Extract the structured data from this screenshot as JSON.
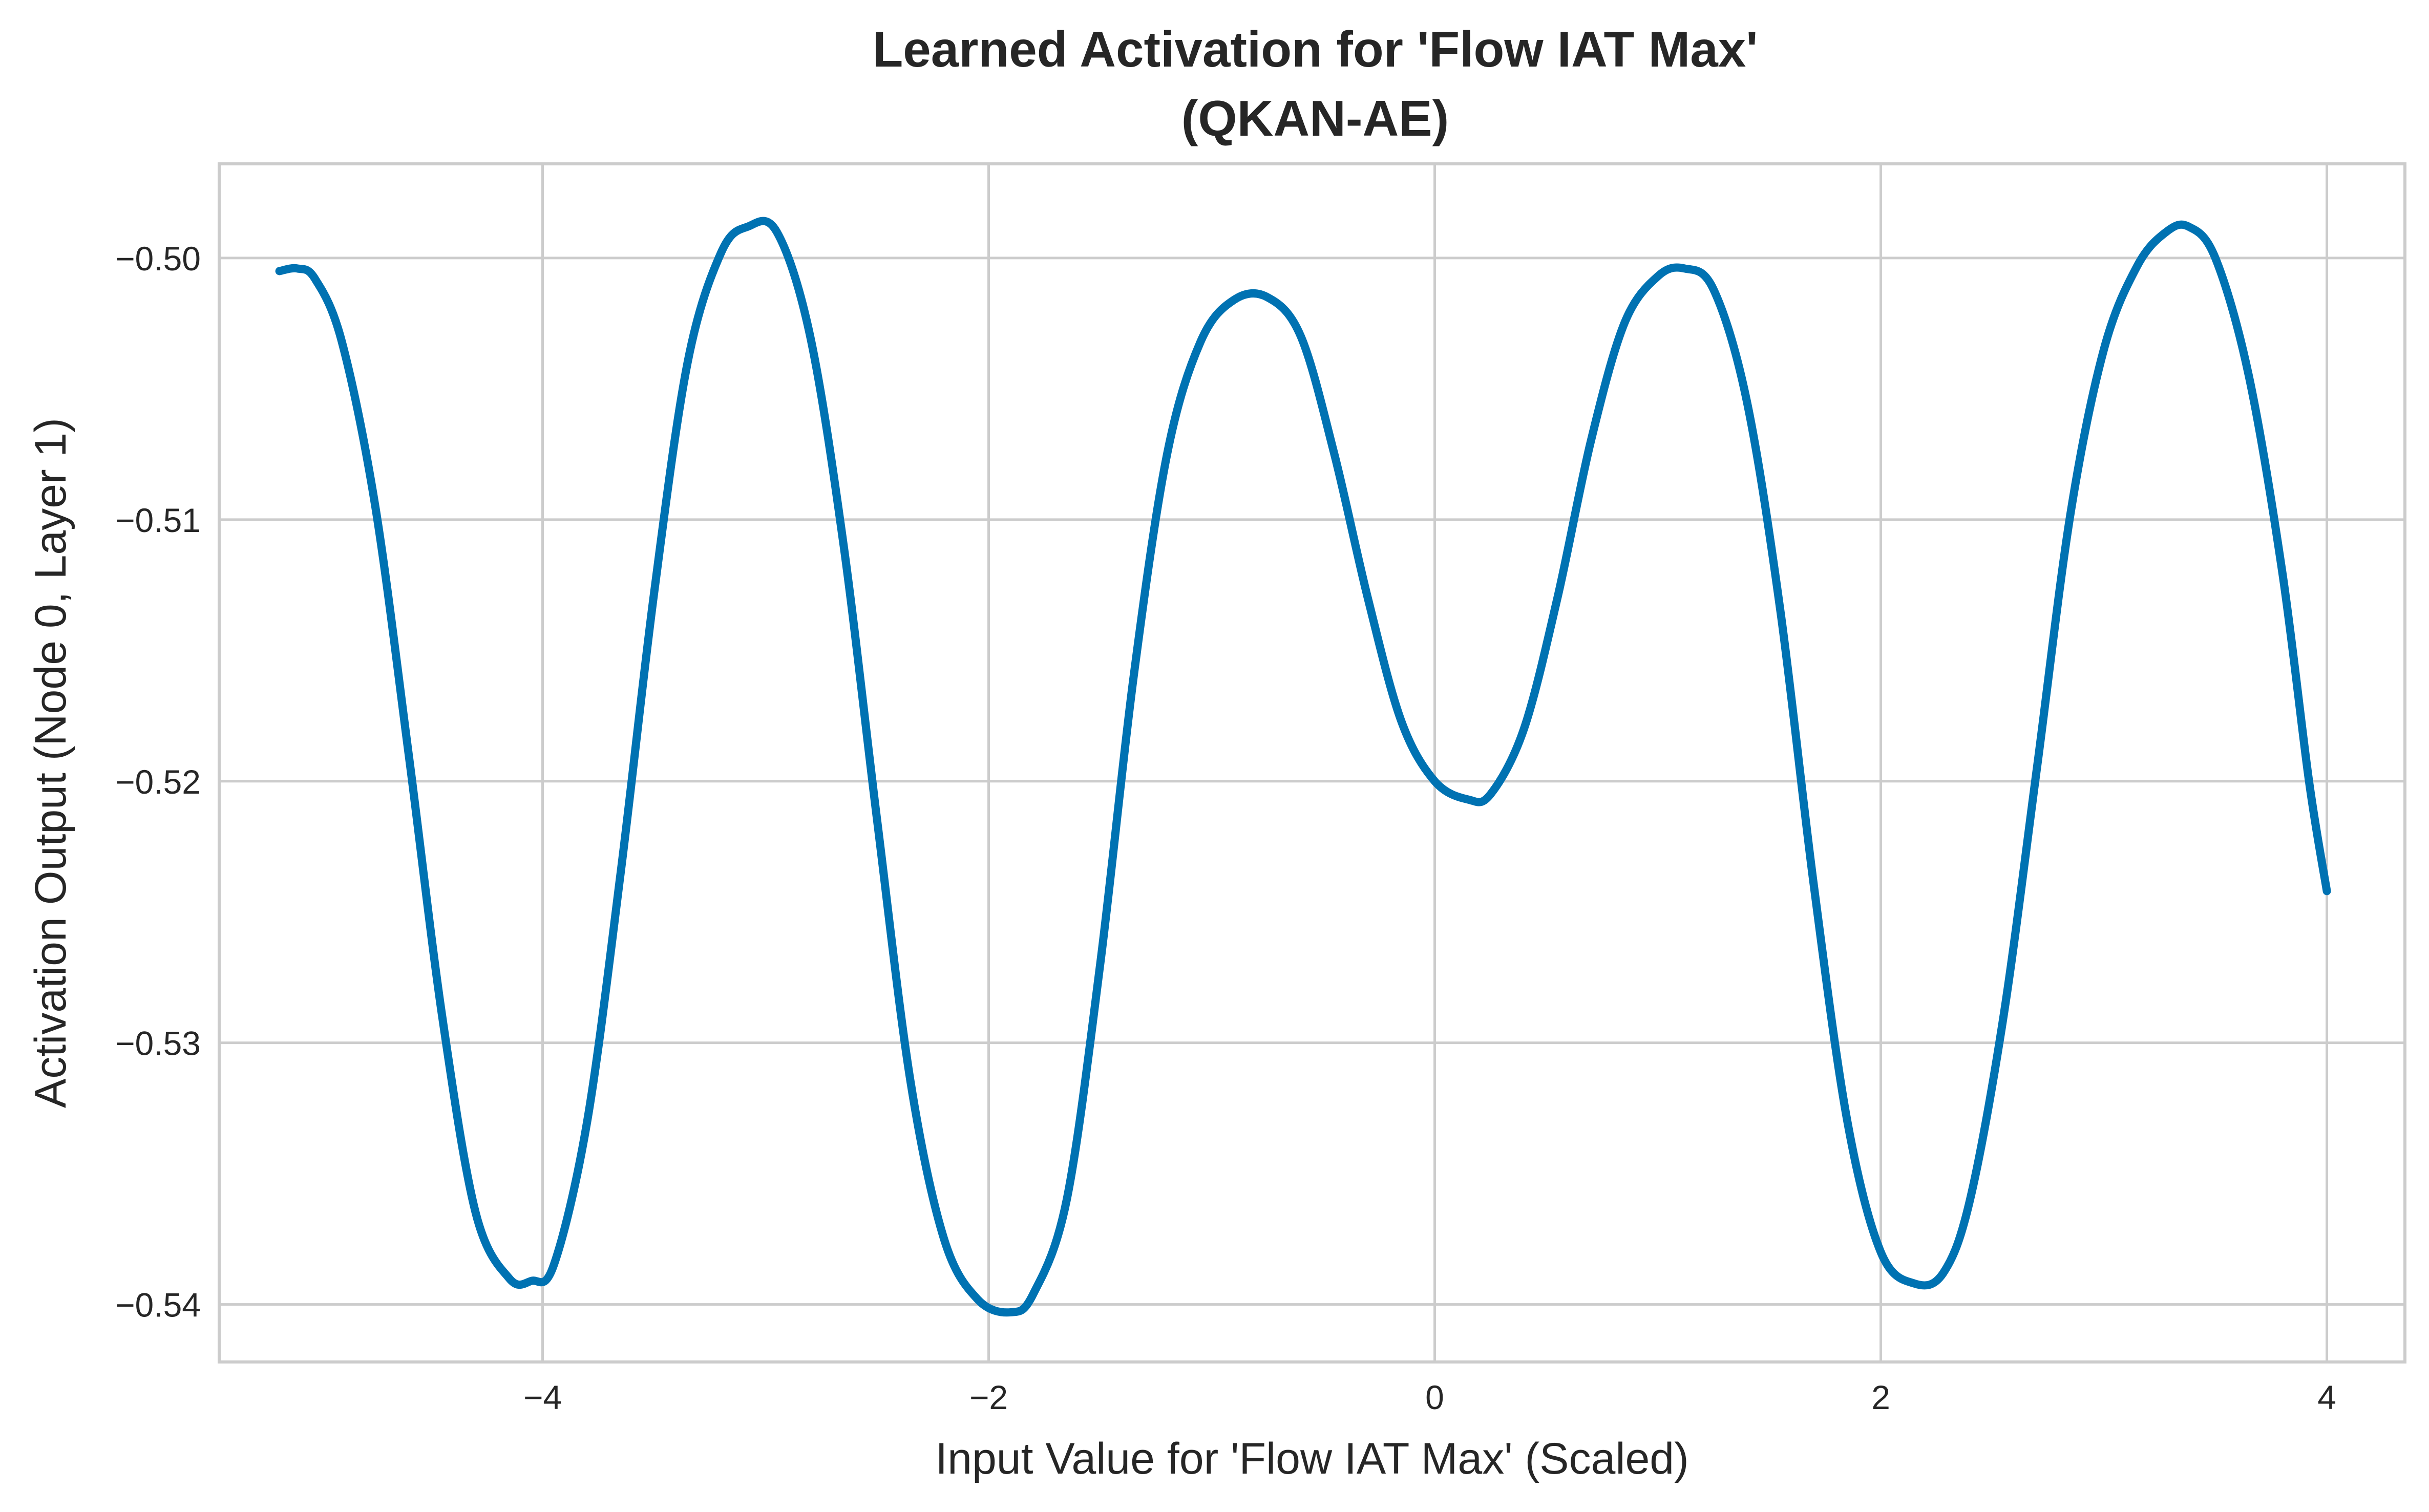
{
  "chart_data": {
    "type": "line",
    "title_line1": "Learned Activation for 'Flow IAT Max'",
    "title_line2": "(QKAN-AE)",
    "xlabel": "Input Value for 'Flow IAT Max' (Scaled)",
    "ylabel": "Activation Output (Node 0, Layer 1)",
    "xlim": [
      -5.45,
      4.35
    ],
    "ylim": [
      -0.5422,
      -0.4964
    ],
    "grid": true,
    "legend": "none",
    "line_color": "#0072B2",
    "x_ticks": [
      {
        "value": -4,
        "label": "−4"
      },
      {
        "value": -2,
        "label": "−2"
      },
      {
        "value": 0,
        "label": "0"
      },
      {
        "value": 2,
        "label": "2"
      },
      {
        "value": 4,
        "label": "4"
      }
    ],
    "y_ticks": [
      {
        "value": -0.5,
        "label": "−0.50"
      },
      {
        "value": -0.51,
        "label": "−0.51"
      },
      {
        "value": -0.52,
        "label": "−0.52"
      },
      {
        "value": -0.53,
        "label": "−0.53"
      },
      {
        "value": -0.54,
        "label": "−0.54"
      }
    ],
    "series": [
      {
        "color": "#0072B2",
        "points": [
          [
            -5.18,
            -0.5005
          ],
          [
            -5.1,
            -0.5004
          ],
          [
            -5.02,
            -0.5008
          ],
          [
            -4.9,
            -0.5032
          ],
          [
            -4.75,
            -0.5095
          ],
          [
            -4.6,
            -0.519
          ],
          [
            -4.45,
            -0.529
          ],
          [
            -4.3,
            -0.5365
          ],
          [
            -4.15,
            -0.539
          ],
          [
            -4.05,
            -0.5391
          ],
          [
            -3.95,
            -0.5385
          ],
          [
            -3.8,
            -0.533
          ],
          [
            -3.65,
            -0.5235
          ],
          [
            -3.5,
            -0.5128
          ],
          [
            -3.35,
            -0.504
          ],
          [
            -3.2,
            -0.4998
          ],
          [
            -3.08,
            -0.4988
          ],
          [
            -2.95,
            -0.499
          ],
          [
            -2.8,
            -0.503
          ],
          [
            -2.65,
            -0.511
          ],
          [
            -2.5,
            -0.5215
          ],
          [
            -2.35,
            -0.5315
          ],
          [
            -2.2,
            -0.5375
          ],
          [
            -2.05,
            -0.5398
          ],
          [
            -1.9,
            -0.5403
          ],
          [
            -1.8,
            -0.5396
          ],
          [
            -1.65,
            -0.536
          ],
          [
            -1.5,
            -0.527
          ],
          [
            -1.35,
            -0.516
          ],
          [
            -1.2,
            -0.5075
          ],
          [
            -1.05,
            -0.5032
          ],
          [
            -0.9,
            -0.5016
          ],
          [
            -0.75,
            -0.5015
          ],
          [
            -0.6,
            -0.503
          ],
          [
            -0.45,
            -0.5075
          ],
          [
            -0.3,
            -0.513
          ],
          [
            -0.15,
            -0.5177
          ],
          [
            0.0,
            -0.52
          ],
          [
            0.15,
            -0.5207
          ],
          [
            0.25,
            -0.5205
          ],
          [
            0.4,
            -0.518
          ],
          [
            0.55,
            -0.513
          ],
          [
            0.7,
            -0.507
          ],
          [
            0.85,
            -0.5025
          ],
          [
            1.0,
            -0.5007
          ],
          [
            1.12,
            -0.5004
          ],
          [
            1.25,
            -0.5012
          ],
          [
            1.4,
            -0.5055
          ],
          [
            1.55,
            -0.5135
          ],
          [
            1.7,
            -0.524
          ],
          [
            1.85,
            -0.533
          ],
          [
            2.0,
            -0.538
          ],
          [
            2.15,
            -0.5392
          ],
          [
            2.28,
            -0.5388
          ],
          [
            2.4,
            -0.536
          ],
          [
            2.55,
            -0.529
          ],
          [
            2.7,
            -0.5195
          ],
          [
            2.85,
            -0.5098
          ],
          [
            3.0,
            -0.5035
          ],
          [
            3.15,
            -0.5003
          ],
          [
            3.28,
            -0.499
          ],
          [
            3.38,
            -0.4988
          ],
          [
            3.5,
            -0.5
          ],
          [
            3.65,
            -0.5045
          ],
          [
            3.8,
            -0.512
          ],
          [
            3.92,
            -0.52
          ],
          [
            4.0,
            -0.5242
          ]
        ]
      }
    ]
  }
}
